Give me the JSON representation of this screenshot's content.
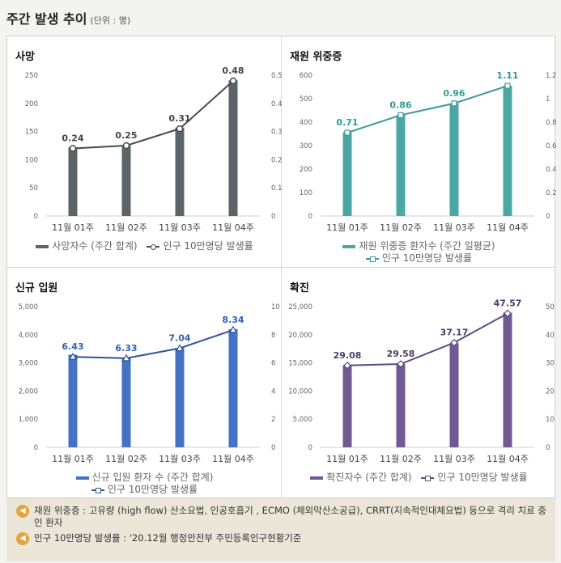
{
  "header": {
    "title": "주간 발생 추이",
    "unit": "(단위 : 명)"
  },
  "charts": [
    {
      "panel_title": "사망",
      "bar_color": "#5b6569",
      "line_color": "#4a4a4a",
      "marker": "circle",
      "legend_bar": "사망자수 (주간 합계)",
      "legend_line": "인구 10만명당 발생률",
      "legend_wrap": false,
      "left_ticks": [
        "0",
        "50",
        "100",
        "150",
        "200",
        "250"
      ],
      "right_ticks": [
        "0",
        "0.1",
        "0.2",
        "0.3",
        "0.4",
        "0.5"
      ],
      "data_labels": [
        "0.24",
        "0.25",
        "0.31",
        "0.48"
      ],
      "label_color": "#444444"
    },
    {
      "panel_title": "재원 위중증",
      "bar_color": "#4ba7a3",
      "line_color": "#3a9a96",
      "marker": "square",
      "legend_bar": "재원 위중증 환자수 (주간 일평균)",
      "legend_line": "인구 10만명당 발생률",
      "legend_wrap": true,
      "left_ticks": [
        "0",
        "100",
        "200",
        "300",
        "400",
        "500",
        "600"
      ],
      "right_ticks": [
        "0",
        "0.2",
        "0.4",
        "0.6",
        "0.8",
        "1",
        "1.2"
      ],
      "data_labels": [
        "0.71",
        "0.86",
        "0.96",
        "1.11"
      ],
      "label_color": "#2f9b98"
    },
    {
      "panel_title": "신규 입원",
      "bar_color": "#4472c4",
      "line_color": "#2f5597",
      "marker": "triangle",
      "legend_bar": "신규 입원 환자 수 (주간 합계)",
      "legend_line": "인구 10만명당 발생률",
      "legend_wrap": true,
      "left_ticks": [
        "0",
        "1,000",
        "2,000",
        "3,000",
        "4,000",
        "5,000"
      ],
      "right_ticks": [
        "0",
        "2",
        "4",
        "6",
        "8",
        "10"
      ],
      "data_labels": [
        "6.43",
        "6.33",
        "7.04",
        "8.34"
      ],
      "label_color": "#2f5fb3"
    },
    {
      "panel_title": "확진",
      "bar_color": "#705a94",
      "line_color": "#5b4a7e",
      "marker": "diamond",
      "legend_bar": "확진자수 (주간 합계)",
      "legend_line": "인구 10만명당 발생률",
      "legend_wrap": false,
      "left_ticks": [
        "0",
        "5,000",
        "10,000",
        "15,000",
        "20,000",
        "25,000"
      ],
      "right_ticks": [
        "0",
        "10",
        "20",
        "30",
        "40",
        "50"
      ],
      "data_labels": [
        "29.08",
        "29.58",
        "37.17",
        "47.57"
      ],
      "label_color": "#4a3d6b"
    }
  ],
  "chart_data": [
    {
      "type": "bar",
      "title": "사망",
      "categories": [
        "11월 01주",
        "11월 02주",
        "11월 03주",
        "11월 04주"
      ],
      "ylim": [
        0,
        250
      ],
      "y2lim": [
        0,
        0.5
      ],
      "series": [
        {
          "name": "사망자수 (주간 합계)",
          "axis": "left",
          "values": [
            122,
            125,
            157,
            241
          ]
        },
        {
          "name": "인구 10만명당 발생률",
          "axis": "right",
          "type": "line",
          "values": [
            0.24,
            0.25,
            0.31,
            0.48
          ]
        }
      ]
    },
    {
      "type": "bar",
      "title": "재원 위중증",
      "categories": [
        "11월 01주",
        "11월 02주",
        "11월 03주",
        "11월 04주"
      ],
      "ylim": [
        0,
        600
      ],
      "y2lim": [
        0,
        1.2
      ],
      "series": [
        {
          "name": "재원 위중증 환자수 (주간 일평균)",
          "axis": "left",
          "values": [
            357,
            430,
            480,
            555
          ]
        },
        {
          "name": "인구 10만명당 발생률",
          "axis": "right",
          "type": "line",
          "values": [
            0.71,
            0.86,
            0.96,
            1.11
          ]
        }
      ]
    },
    {
      "type": "bar",
      "title": "신규 입원",
      "categories": [
        "11월 01주",
        "11월 02주",
        "11월 03주",
        "11월 04주"
      ],
      "ylim": [
        0,
        5000
      ],
      "y2lim": [
        0,
        10
      ],
      "series": [
        {
          "name": "신규 입원 환자 수 (주간 합계)",
          "axis": "left",
          "values": [
            3290,
            3180,
            3530,
            4200
          ]
        },
        {
          "name": "인구 10만명당 발생률",
          "axis": "right",
          "type": "line",
          "values": [
            6.43,
            6.33,
            7.04,
            8.34
          ]
        }
      ]
    },
    {
      "type": "bar",
      "title": "확진",
      "categories": [
        "11월 01주",
        "11월 02주",
        "11월 03주",
        "11월 04주"
      ],
      "ylim": [
        0,
        25000
      ],
      "y2lim": [
        0,
        50
      ],
      "series": [
        {
          "name": "확진자수 (주간 합계)",
          "axis": "left",
          "values": [
            14600,
            14800,
            18500,
            23900
          ]
        },
        {
          "name": "인구 10만명당 발생률",
          "axis": "right",
          "type": "line",
          "values": [
            29.08,
            29.58,
            37.17,
            47.57
          ]
        }
      ]
    }
  ],
  "notes": [
    {
      "icon": "speaker-icon",
      "text": "재원 위중증 : 고유량 (high flow) 산소요법, 인공호흡기 , ECMO (체외막산소공급), CRRT(지속적인대체요법) 등으로 격리 치료 중인 환자"
    },
    {
      "icon": "speaker-icon",
      "text": "인구 10만명당 발생률 : '20.12월 행정안전부 주민등록인구현황기준"
    }
  ]
}
